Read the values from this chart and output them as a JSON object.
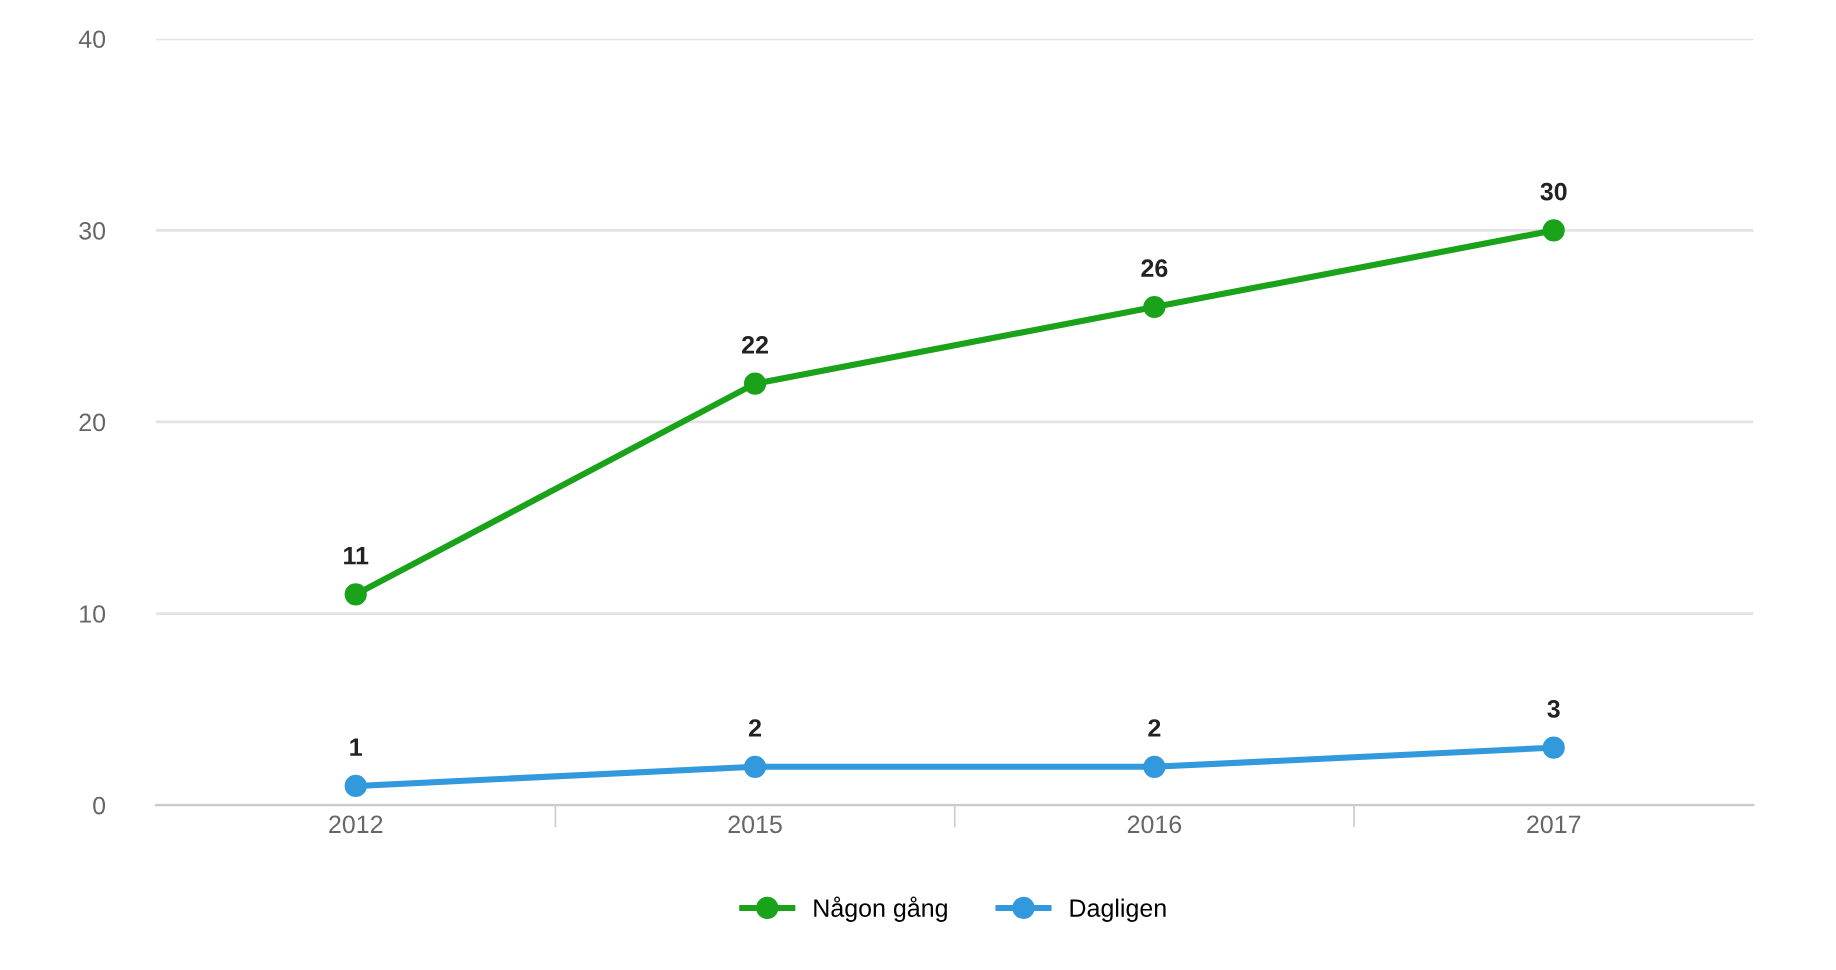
{
  "chart_data": {
    "type": "line",
    "categories": [
      "2012",
      "2015",
      "2016",
      "2017"
    ],
    "series": [
      {
        "name": "Någon gång",
        "color": "#1aa31a",
        "values": [
          11,
          22,
          26,
          30
        ]
      },
      {
        "name": "Dagligen",
        "color": "#3399dd",
        "values": [
          1,
          2,
          2,
          3
        ]
      }
    ],
    "ylim": [
      0,
      40
    ],
    "yticks": [
      0,
      10,
      20,
      30,
      40
    ],
    "grid": "y",
    "legend": "bottom",
    "marker": "circle",
    "line_style": "solid",
    "data_labels": true
  }
}
